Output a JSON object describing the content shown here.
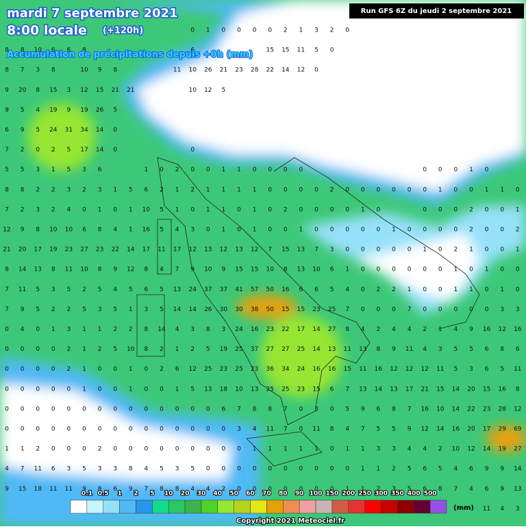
{
  "header": {
    "date": "mardi 7 septembre 2021",
    "time": "8:00 locale",
    "lead": "(+120h)",
    "subtitle": "Accumulation de précipitations depuis +0h (mm)",
    "run": "Run GFS 6Z du jeudi 2 septembre 2021"
  },
  "map_values": {
    "rows": [
      [
        null,
        null,
        null,
        null,
        null,
        null,
        null,
        null,
        null,
        null,
        null,
        null,
        0,
        1,
        0,
        0,
        0,
        0,
        2,
        1,
        3,
        2,
        0,
        null,
        null,
        null,
        null,
        null,
        null,
        null,
        null,
        null,
        null,
        null
      ],
      [
        8,
        8,
        10,
        6,
        6,
        8,
        null,
        null,
        null,
        null,
        null,
        null,
        6,
        null,
        null,
        null,
        null,
        15,
        15,
        11,
        5,
        0,
        null,
        null,
        null,
        null,
        null,
        null,
        null,
        null,
        null,
        null,
        null,
        null
      ],
      [
        8,
        7,
        3,
        8,
        null,
        10,
        9,
        8,
        null,
        null,
        null,
        11,
        10,
        26,
        21,
        23,
        28,
        22,
        14,
        12,
        0,
        null,
        null,
        null,
        null,
        null,
        null,
        null,
        null,
        null,
        null,
        null,
        null,
        null
      ],
      [
        9,
        20,
        8,
        15,
        3,
        12,
        15,
        21,
        21,
        null,
        null,
        null,
        10,
        12,
        5,
        null,
        null,
        null,
        null,
        null,
        null,
        null,
        null,
        null,
        null,
        null,
        null,
        null,
        null,
        null,
        null,
        null,
        null,
        null
      ],
      [
        9,
        5,
        4,
        19,
        9,
        19,
        26,
        5,
        null,
        null,
        null,
        null,
        null,
        null,
        null,
        null,
        null,
        null,
        null,
        null,
        null,
        null,
        null,
        null,
        null,
        null,
        null,
        null,
        null,
        null,
        null,
        null,
        null,
        null
      ],
      [
        6,
        9,
        5,
        24,
        31,
        34,
        14,
        0,
        null,
        null,
        null,
        null,
        null,
        null,
        null,
        null,
        null,
        null,
        null,
        null,
        null,
        null,
        null,
        null,
        null,
        null,
        null,
        null,
        null,
        null,
        null,
        null,
        null,
        null
      ],
      [
        7,
        2,
        0,
        2,
        5,
        17,
        14,
        0,
        null,
        null,
        null,
        null,
        0,
        null,
        null,
        null,
        null,
        null,
        null,
        null,
        null,
        null,
        null,
        null,
        null,
        null,
        null,
        null,
        null,
        null,
        null,
        null,
        null,
        null
      ],
      [
        5,
        5,
        3,
        1,
        5,
        3,
        6,
        null,
        null,
        1,
        0,
        2,
        0,
        0,
        1,
        1,
        0,
        0,
        0,
        0,
        null,
        null,
        null,
        null,
        null,
        null,
        null,
        0,
        0,
        0,
        1,
        0,
        null,
        null
      ],
      [
        8,
        8,
        2,
        2,
        3,
        2,
        3,
        1,
        5,
        6,
        2,
        1,
        2,
        1,
        1,
        1,
        1,
        0,
        0,
        0,
        0,
        2,
        0,
        0,
        0,
        0,
        0,
        0,
        1,
        0,
        0,
        1,
        1,
        0
      ],
      [
        7,
        2,
        3,
        2,
        4,
        0,
        1,
        0,
        1,
        10,
        5,
        1,
        0,
        1,
        1,
        0,
        1,
        0,
        2,
        0,
        0,
        0,
        0,
        1,
        0,
        null,
        null,
        0,
        0,
        0,
        2,
        0,
        0,
        1
      ],
      [
        12,
        9,
        8,
        10,
        10,
        6,
        8,
        4,
        1,
        16,
        5,
        4,
        3,
        0,
        1,
        0,
        1,
        0,
        0,
        1,
        0,
        0,
        0,
        0,
        0,
        1,
        0,
        0,
        0,
        0,
        2,
        0,
        0,
        2
      ],
      [
        21,
        20,
        17,
        19,
        23,
        27,
        23,
        22,
        14,
        17,
        11,
        17,
        12,
        13,
        12,
        13,
        12,
        7,
        15,
        13,
        7,
        3,
        0,
        0,
        0,
        0,
        0,
        1,
        0,
        2,
        1,
        0,
        0,
        1
      ],
      [
        8,
        14,
        13,
        8,
        11,
        10,
        8,
        9,
        12,
        8,
        4,
        7,
        9,
        10,
        9,
        15,
        15,
        10,
        8,
        13,
        10,
        6,
        1,
        0,
        0,
        0,
        0,
        0,
        0,
        1,
        0,
        1,
        0,
        0
      ],
      [
        7,
        11,
        5,
        3,
        5,
        2,
        5,
        4,
        5,
        6,
        5,
        13,
        24,
        37,
        37,
        41,
        57,
        50,
        16,
        6,
        6,
        5,
        4,
        0,
        2,
        2,
        1,
        0,
        0,
        1,
        1,
        0,
        1,
        0
      ],
      [
        7,
        9,
        5,
        2,
        2,
        5,
        3,
        5,
        1,
        3,
        5,
        14,
        14,
        26,
        30,
        30,
        38,
        50,
        15,
        15,
        23,
        25,
        7,
        0,
        0,
        0,
        7,
        0,
        0,
        0,
        0,
        0,
        3,
        3
      ],
      [
        0,
        4,
        0,
        1,
        3,
        1,
        1,
        2,
        2,
        8,
        14,
        4,
        3,
        8,
        3,
        24,
        16,
        23,
        22,
        17,
        14,
        27,
        8,
        4,
        2,
        4,
        4,
        2,
        1,
        4,
        9,
        16,
        12,
        16
      ],
      [
        0,
        0,
        0,
        0,
        2,
        1,
        2,
        5,
        10,
        8,
        2,
        1,
        2,
        5,
        19,
        25,
        37,
        27,
        27,
        25,
        14,
        13,
        11,
        13,
        8,
        9,
        11,
        4,
        3,
        5,
        5,
        6,
        8,
        6
      ],
      [
        0,
        0,
        0,
        0,
        2,
        1,
        0,
        0,
        1,
        0,
        2,
        6,
        12,
        25,
        23,
        25,
        23,
        36,
        34,
        24,
        16,
        16,
        15,
        11,
        16,
        12,
        12,
        12,
        11,
        5,
        3,
        6,
        5,
        11
      ],
      [
        0,
        0,
        0,
        0,
        0,
        1,
        0,
        0,
        1,
        0,
        0,
        1,
        5,
        13,
        18,
        10,
        13,
        25,
        25,
        23,
        15,
        6,
        7,
        13,
        14,
        13,
        17,
        21,
        15,
        14,
        20,
        15,
        16,
        8
      ],
      [
        0,
        0,
        0,
        0,
        0,
        0,
        0,
        0,
        0,
        0,
        0,
        0,
        0,
        0,
        6,
        7,
        8,
        8,
        7,
        0,
        3,
        0,
        5,
        9,
        6,
        8,
        7,
        16,
        10,
        14,
        22,
        23,
        28,
        12
      ],
      [
        0,
        0,
        0,
        0,
        0,
        0,
        0,
        0,
        0,
        0,
        0,
        0,
        0,
        0,
        0,
        3,
        4,
        11,
        7,
        0,
        11,
        8,
        4,
        7,
        5,
        5,
        9,
        12,
        14,
        16,
        20,
        17,
        29,
        69
      ],
      [
        1,
        1,
        2,
        0,
        0,
        0,
        2,
        0,
        0,
        0,
        0,
        0,
        0,
        0,
        0,
        0,
        1,
        1,
        1,
        1,
        1,
        0,
        1,
        1,
        3,
        3,
        4,
        4,
        2,
        10,
        12,
        14,
        19,
        27
      ],
      [
        4,
        7,
        11,
        6,
        3,
        5,
        3,
        3,
        8,
        4,
        5,
        3,
        5,
        0,
        0,
        0,
        0,
        0,
        0,
        0,
        0,
        0,
        0,
        1,
        1,
        2,
        5,
        6,
        5,
        4,
        6,
        9,
        9,
        14
      ],
      [
        9,
        15,
        18,
        11,
        11,
        9,
        8,
        6,
        9,
        7,
        8,
        8,
        4,
        4,
        2,
        0,
        0,
        0,
        0,
        0,
        0,
        0,
        1,
        1,
        2,
        3,
        5,
        6,
        8,
        7,
        4,
        6,
        9,
        13
      ],
      [
        null,
        null,
        null,
        null,
        null,
        null,
        null,
        null,
        null,
        null,
        null,
        null,
        null,
        null,
        null,
        null,
        null,
        null,
        null,
        null,
        null,
        null,
        null,
        null,
        null,
        null,
        null,
        null,
        null,
        null,
        null,
        11,
        4,
        3
      ]
    ]
  },
  "legend": {
    "labels": [
      "0.1",
      "0.5",
      "1",
      "2",
      "5",
      "10",
      "20",
      "30",
      "40",
      "50",
      "60",
      "70",
      "80",
      "90",
      "100",
      "150",
      "200",
      "250",
      "300",
      "350",
      "400",
      "500"
    ],
    "colors": [
      "#ffffff",
      "#c8f5fa",
      "#96e1fa",
      "#50b9f5",
      "#2896eb",
      "#14dc8c",
      "#28c864",
      "#3cb44b",
      "#50d228",
      "#96e632",
      "#b4d21e",
      "#e6e614",
      "#e6a00a",
      "#f08c50",
      "#f0a0a0",
      "#c8b4b4",
      "#d25a46",
      "#e63232",
      "#ff0000",
      "#c80000",
      "#8c0000",
      "#640032",
      "#9650e6"
    ],
    "unit": "(mm)"
  },
  "footer": {
    "copyright": "Copyright 2021 Meteociel.fr"
  }
}
